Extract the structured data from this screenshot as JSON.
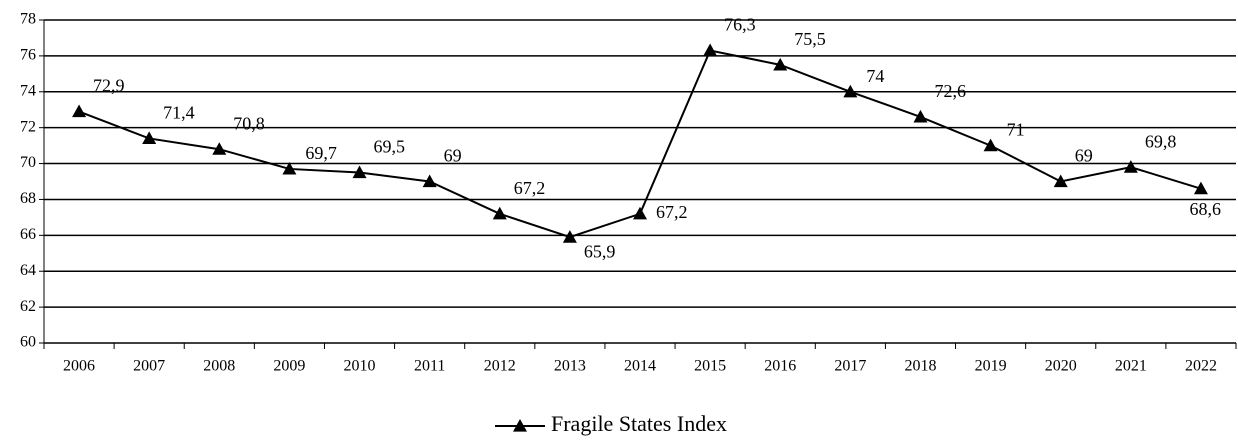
{
  "chart_data": {
    "type": "line",
    "categories": [
      "2006",
      "2007",
      "2008",
      "2009",
      "2010",
      "2011",
      "2012",
      "2013",
      "2014",
      "2015",
      "2016",
      "2017",
      "2018",
      "2019",
      "2020",
      "2021",
      "2022"
    ],
    "series": [
      {
        "name": "Fragile States Index",
        "color": "#000000",
        "values": [
          72.9,
          71.4,
          70.8,
          69.7,
          69.5,
          69,
          67.2,
          65.9,
          67.2,
          76.3,
          75.5,
          74,
          72.6,
          71,
          69,
          69.8,
          68.6
        ],
        "value_labels": [
          "72,9",
          "71,4",
          "70,8",
          "69,7",
          "69,5",
          "69",
          "67,2",
          "65,9",
          "67,2",
          "76,3",
          "75,5",
          "74",
          "72,6",
          "71",
          "69",
          "69,8",
          "68,6"
        ]
      }
    ],
    "ylim": [
      60,
      78
    ],
    "yticks": [
      60,
      62,
      64,
      66,
      68,
      70,
      72,
      74,
      76,
      78
    ],
    "grid": true,
    "legend": "bottom"
  }
}
